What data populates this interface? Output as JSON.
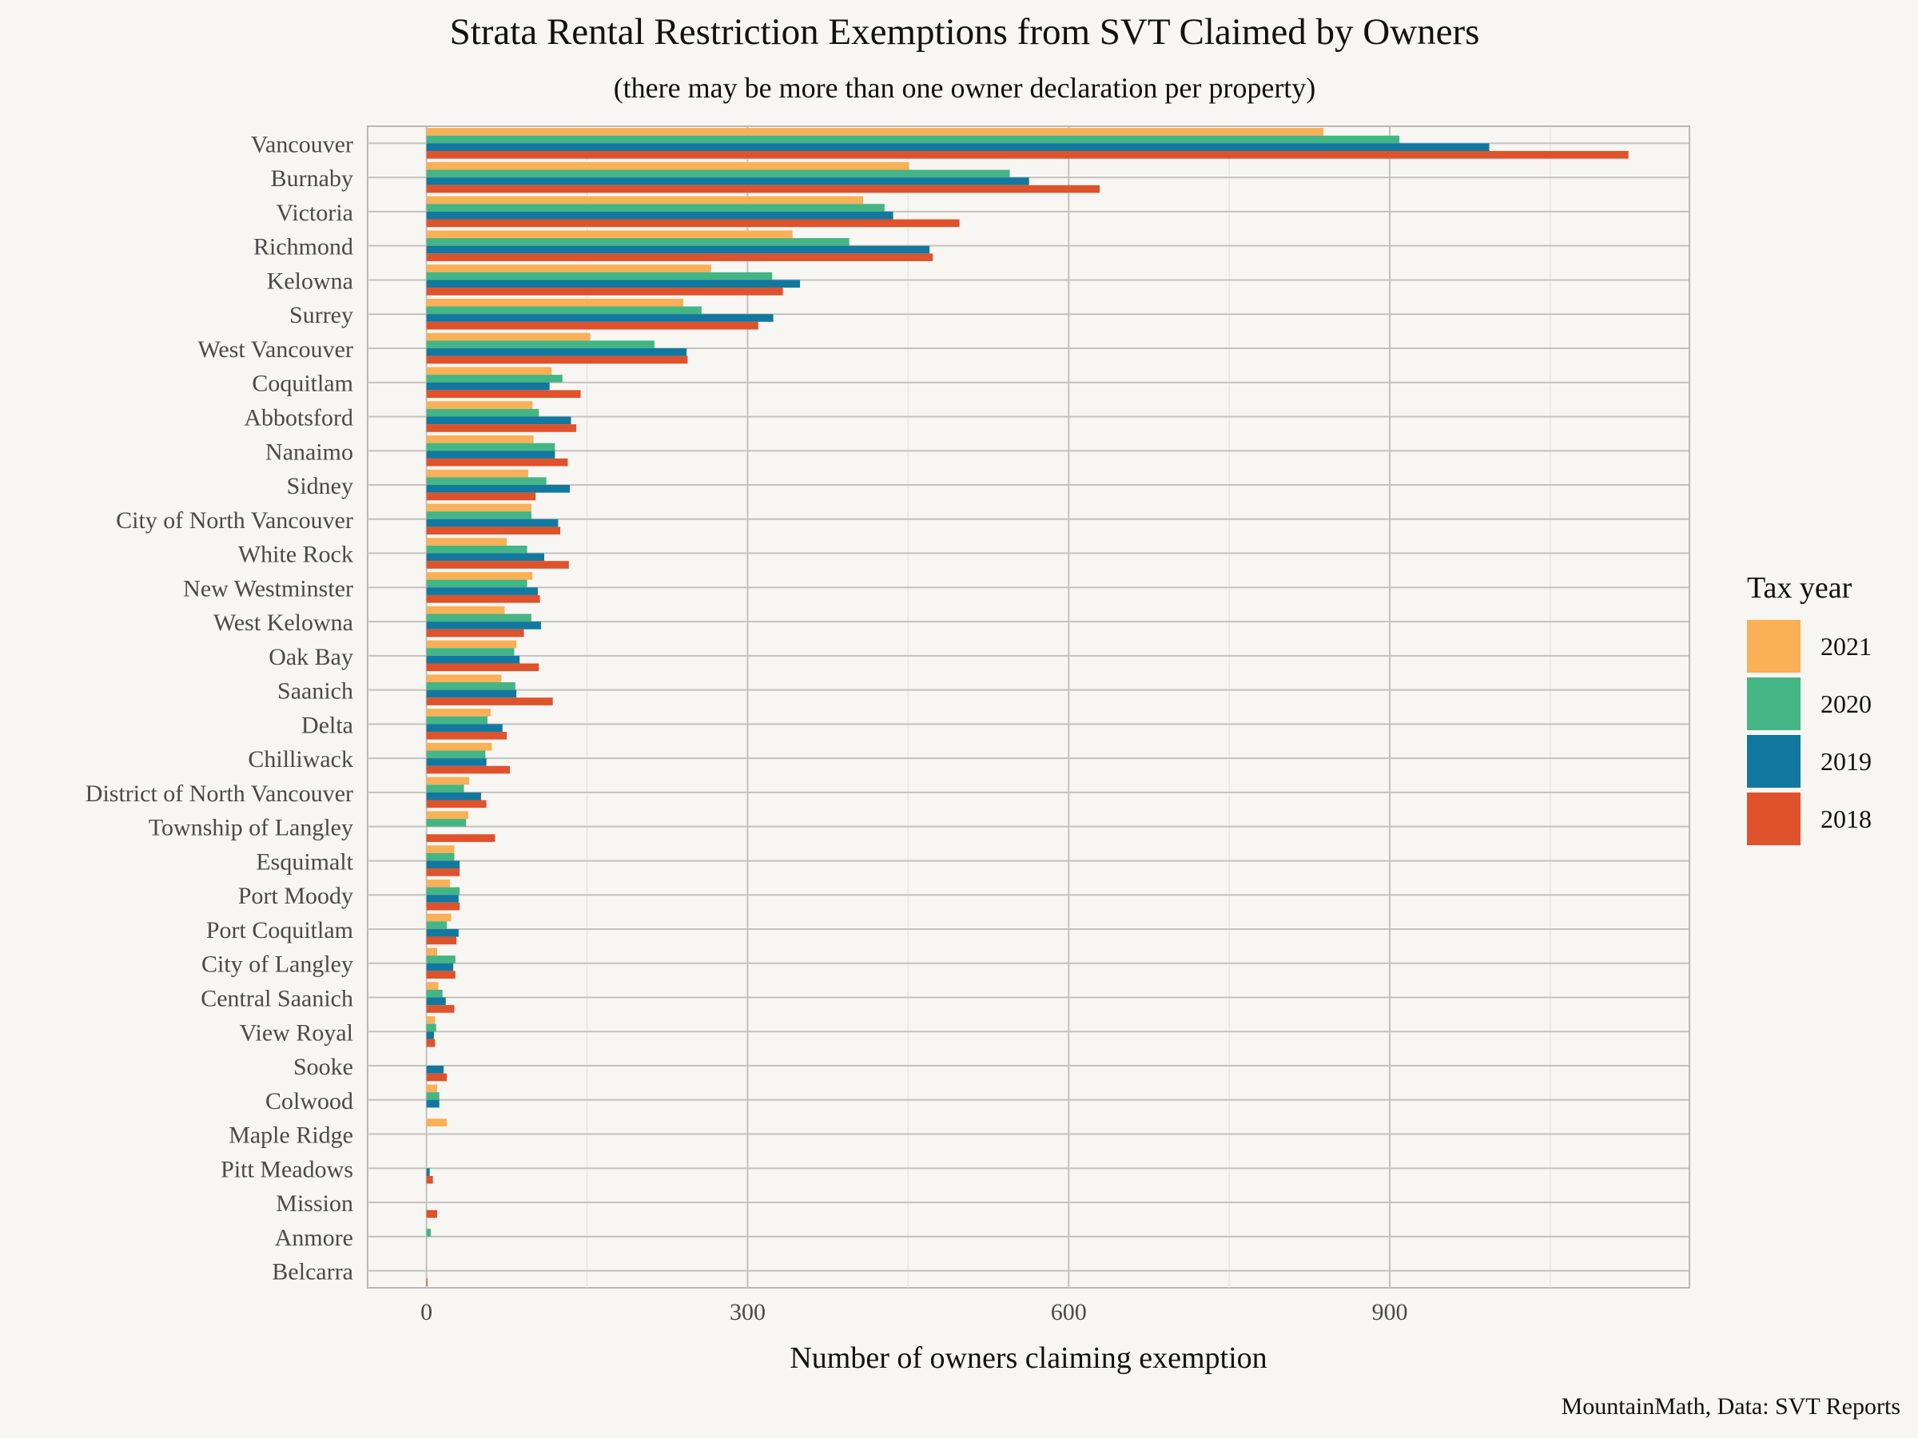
{
  "chart_data": {
    "type": "bar",
    "orientation": "horizontal",
    "title": "Strata Rental Restriction Exemptions from SVT Claimed by Owners",
    "subtitle": "(there may be more than one owner declaration per property)",
    "xlabel": "Number of owners claiming exemption",
    "ylabel": "",
    "caption": "MountainMath, Data: SVT Reports",
    "xlim": [
      -55,
      1180
    ],
    "xticks": [
      0,
      300,
      600,
      900
    ],
    "grid": true,
    "legend": {
      "title": "Tax year",
      "placement": "right"
    },
    "categories": [
      "Vancouver",
      "Burnaby",
      "Victoria",
      "Richmond",
      "Kelowna",
      "Surrey",
      "West Vancouver",
      "Coquitlam",
      "Abbotsford",
      "Nanaimo",
      "Sidney",
      "City of North Vancouver",
      "White Rock",
      "New Westminster",
      "West Kelowna",
      "Oak Bay",
      "Saanich",
      "Delta",
      "Chilliwack",
      "District of North Vancouver",
      "Township of Langley",
      "Esquimalt",
      "Port Moody",
      "Port Coquitlam",
      "City of Langley",
      "Central Saanich",
      "View Royal",
      "Sooke",
      "Colwood",
      "Maple Ridge",
      "Pitt Meadows",
      "Mission",
      "Anmore",
      "Belcarra"
    ],
    "series": [
      {
        "name": "2021",
        "color": "#f9b057",
        "values": [
          838,
          451,
          408,
          342,
          266,
          240,
          153,
          117,
          99,
          100,
          95,
          98,
          75,
          99,
          73,
          84,
          70,
          60,
          61,
          40,
          39,
          26,
          22,
          23,
          10,
          11,
          8,
          0,
          10,
          19,
          0,
          0,
          0,
          0
        ]
      },
      {
        "name": "2020",
        "color": "#44b584",
        "values": [
          909,
          545,
          428,
          395,
          323,
          257,
          213,
          127,
          105,
          120,
          112,
          98,
          94,
          94,
          98,
          82,
          83,
          57,
          55,
          35,
          37,
          26,
          31,
          19,
          27,
          15,
          9,
          0,
          12,
          0,
          0,
          0,
          4,
          0
        ]
      },
      {
        "name": "2019",
        "color": "#1278a0",
        "values": [
          993,
          563,
          436,
          470,
          349,
          324,
          243,
          115,
          135,
          120,
          134,
          123,
          110,
          104,
          107,
          87,
          84,
          71,
          56,
          51,
          0,
          31,
          30,
          30,
          25,
          18,
          7,
          16,
          12,
          0,
          3,
          0,
          0,
          0
        ]
      },
      {
        "name": "2018",
        "color": "#de522c",
        "values": [
          1123,
          629,
          498,
          473,
          333,
          310,
          244,
          144,
          140,
          132,
          102,
          125,
          133,
          106,
          91,
          105,
          118,
          75,
          78,
          56,
          64,
          31,
          31,
          28,
          27,
          26,
          8,
          19,
          0,
          0,
          6,
          10,
          0,
          1
        ]
      }
    ]
  }
}
